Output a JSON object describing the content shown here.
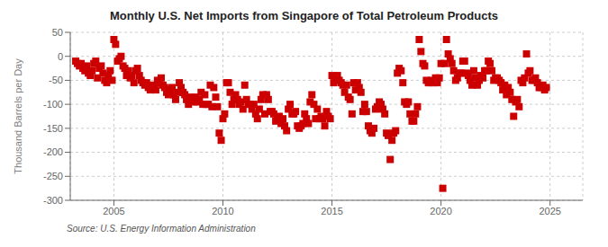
{
  "chart_data": {
    "type": "scatter",
    "title": "Monthly U.S. Net Imports from Singapore of Total Petroleum Products",
    "ylabel": "Thousand Barrels per Day",
    "annotations": [
      "Source: U.S. Energy Information Administration"
    ],
    "color": "#cc0000",
    "marker": "square",
    "grid": true,
    "xlim": [
      2003.0,
      2026.5
    ],
    "xticks": [
      2005,
      2010,
      2015,
      2020,
      2025
    ],
    "ylim": [
      -300,
      50
    ],
    "yticks": [
      50,
      0,
      -50,
      -100,
      -150,
      -200,
      -250,
      -300
    ],
    "x": [
      2003.25,
      2003.33,
      2003.42,
      2003.5,
      2003.58,
      2003.67,
      2003.75,
      2003.83,
      2003.92,
      2004.0,
      2004.08,
      2004.17,
      2004.25,
      2004.33,
      2004.42,
      2004.5,
      2004.58,
      2004.67,
      2004.75,
      2004.83,
      2004.92,
      2005.0,
      2005.08,
      2005.17,
      2005.25,
      2005.33,
      2005.42,
      2005.5,
      2005.58,
      2005.67,
      2005.75,
      2005.83,
      2005.92,
      2006.0,
      2006.08,
      2006.17,
      2006.25,
      2006.33,
      2006.42,
      2006.5,
      2006.58,
      2006.67,
      2006.75,
      2006.83,
      2006.92,
      2007.0,
      2007.08,
      2007.17,
      2007.25,
      2007.33,
      2007.42,
      2007.5,
      2007.58,
      2007.67,
      2007.75,
      2007.83,
      2007.92,
      2008.0,
      2008.08,
      2008.17,
      2008.25,
      2008.33,
      2008.42,
      2008.5,
      2008.58,
      2008.67,
      2008.75,
      2008.83,
      2008.92,
      2009.0,
      2009.08,
      2009.17,
      2009.25,
      2009.33,
      2009.42,
      2009.5,
      2009.58,
      2009.67,
      2009.75,
      2009.83,
      2009.92,
      2010.0,
      2010.08,
      2010.17,
      2010.25,
      2010.33,
      2010.42,
      2010.5,
      2010.58,
      2010.67,
      2010.75,
      2010.83,
      2010.92,
      2011.0,
      2011.08,
      2011.17,
      2011.25,
      2011.33,
      2011.42,
      2011.5,
      2011.58,
      2011.67,
      2011.75,
      2011.83,
      2011.92,
      2012.0,
      2012.08,
      2012.17,
      2012.25,
      2012.33,
      2012.42,
      2012.5,
      2012.58,
      2012.67,
      2012.75,
      2012.83,
      2012.92,
      2013.0,
      2013.08,
      2013.17,
      2013.25,
      2013.33,
      2013.42,
      2013.5,
      2013.58,
      2013.67,
      2013.75,
      2013.83,
      2013.92,
      2014.0,
      2014.08,
      2014.17,
      2014.25,
      2014.33,
      2014.42,
      2014.5,
      2014.58,
      2014.67,
      2014.75,
      2014.83,
      2014.92,
      2015.0,
      2015.08,
      2015.17,
      2015.25,
      2015.33,
      2015.42,
      2015.5,
      2015.58,
      2015.67,
      2015.75,
      2015.83,
      2015.92,
      2016.0,
      2016.08,
      2016.17,
      2016.25,
      2016.33,
      2016.42,
      2016.5,
      2016.58,
      2016.67,
      2016.75,
      2016.83,
      2016.92,
      2017.0,
      2017.08,
      2017.17,
      2017.25,
      2017.33,
      2017.42,
      2017.5,
      2017.58,
      2017.67,
      2017.75,
      2017.83,
      2017.92,
      2018.0,
      2018.08,
      2018.17,
      2018.25,
      2018.33,
      2018.42,
      2018.5,
      2018.58,
      2018.67,
      2018.75,
      2018.83,
      2018.92,
      2019.0,
      2019.08,
      2019.17,
      2019.25,
      2019.33,
      2019.42,
      2019.5,
      2019.58,
      2019.67,
      2019.75,
      2019.83,
      2019.92,
      2020.0,
      2020.08,
      2020.17,
      2020.25,
      2020.33,
      2020.42,
      2020.5,
      2020.58,
      2020.67,
      2020.75,
      2020.83,
      2020.92,
      2021.0,
      2021.08,
      2021.17,
      2021.25,
      2021.33,
      2021.42,
      2021.5,
      2021.58,
      2021.67,
      2021.75,
      2021.83,
      2021.92,
      2022.0,
      2022.08,
      2022.17,
      2022.25,
      2022.33,
      2022.42,
      2022.5,
      2022.58,
      2022.67,
      2022.75,
      2022.83,
      2022.92,
      2023.0,
      2023.08,
      2023.17,
      2023.25,
      2023.33,
      2023.42,
      2023.5,
      2023.58,
      2023.67,
      2023.75,
      2023.83,
      2023.92,
      2024.0,
      2024.08,
      2024.17,
      2024.25,
      2024.33,
      2024.42,
      2024.5,
      2024.58,
      2024.67,
      2024.75,
      2024.83
    ],
    "values": [
      -10,
      -15,
      -20,
      -15,
      -25,
      -30,
      -20,
      -35,
      -40,
      -30,
      -15,
      -10,
      -45,
      -25,
      -20,
      -35,
      -50,
      -55,
      -40,
      -30,
      -50,
      35,
      25,
      -10,
      -5,
      0,
      -20,
      -25,
      -40,
      -30,
      -45,
      -40,
      -55,
      -30,
      -25,
      -40,
      -50,
      -55,
      -60,
      -55,
      -65,
      -70,
      -60,
      -65,
      -70,
      -50,
      -55,
      -45,
      -60,
      -65,
      -75,
      -80,
      -70,
      -65,
      -80,
      -90,
      -75,
      -55,
      -65,
      -75,
      -80,
      -90,
      -100,
      -85,
      -90,
      -95,
      -85,
      -95,
      -90,
      -75,
      -100,
      -80,
      -100,
      -100,
      -60,
      -105,
      -65,
      -85,
      -105,
      -160,
      -175,
      -130,
      -120,
      -55,
      -55,
      -75,
      -100,
      -90,
      -80,
      -90,
      -100,
      -95,
      -110,
      -60,
      -90,
      -100,
      -100,
      -110,
      -100,
      -120,
      -130,
      -110,
      -90,
      -80,
      -120,
      -80,
      -90,
      -115,
      -115,
      -120,
      -135,
      -130,
      -125,
      -140,
      -130,
      -145,
      -155,
      -110,
      -100,
      -120,
      -120,
      -115,
      -145,
      -150,
      -145,
      -140,
      -120,
      -130,
      -140,
      -95,
      -80,
      -100,
      -130,
      -110,
      -130,
      -125,
      -130,
      -145,
      -115,
      -125,
      -130,
      -40,
      -55,
      -50,
      -40,
      -50,
      -55,
      -60,
      -75,
      -60,
      -85,
      -90,
      -120,
      -55,
      -70,
      -55,
      -65,
      -75,
      -115,
      -100,
      -115,
      -145,
      -155,
      -160,
      -150,
      -110,
      -105,
      -95,
      -100,
      -110,
      -120,
      -160,
      -165,
      -215,
      -175,
      -160,
      -155,
      -35,
      -25,
      -30,
      -55,
      -95,
      -100,
      -95,
      -120,
      -135,
      -135,
      -120,
      -105,
      35,
      10,
      -15,
      -20,
      -50,
      -55,
      -55,
      -50,
      -55,
      -45,
      -55,
      -45,
      -15,
      -275,
      -15,
      35,
      5,
      -5,
      -15,
      -30,
      -50,
      -45,
      -35,
      -35,
      -10,
      -10,
      -35,
      -40,
      -50,
      -60,
      -30,
      -45,
      -60,
      -50,
      -40,
      -45,
      -30,
      -30,
      -10,
      -15,
      -30,
      -50,
      -45,
      -45,
      -50,
      -55,
      -70,
      -60,
      -80,
      -65,
      -75,
      -90,
      -125,
      -95,
      -90,
      -105,
      -50,
      -55,
      -45,
      5,
      -35,
      -30,
      -50,
      -50,
      -45,
      -55,
      -65,
      -65,
      -60,
      -70,
      -65
    ]
  }
}
